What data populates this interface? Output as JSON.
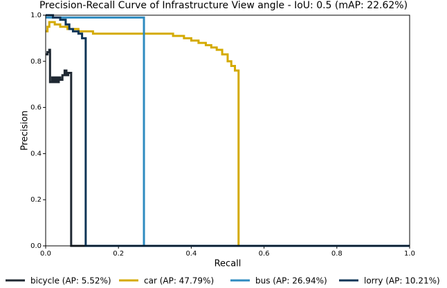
{
  "chart_data": {
    "type": "line",
    "title": "Precision-Recall Curve of Infrastructure View angle - IoU: 0.5 (mAP: 22.62%)",
    "x_label": "Recall",
    "y_label": "Precision",
    "xlim": [
      0,
      1
    ],
    "ylim": [
      0,
      1
    ],
    "xticks": [
      {
        "value": 0,
        "label": "0.0"
      },
      {
        "value": 0.2,
        "label": "0.2"
      },
      {
        "value": 0.4,
        "label": "0.4"
      },
      {
        "value": 0.6,
        "label": "0.6"
      },
      {
        "value": 0.8,
        "label": "0.8"
      },
      {
        "value": 1,
        "label": "1.0"
      }
    ],
    "yticks": [
      {
        "value": 0,
        "label": "0.0"
      },
      {
        "value": 0.2,
        "label": "0.2"
      },
      {
        "value": 0.4,
        "label": "0.4"
      },
      {
        "value": 0.6,
        "label": "0.6"
      },
      {
        "value": 0.8,
        "label": "0.8"
      },
      {
        "value": 1,
        "label": "1.0"
      }
    ],
    "legend": "bottom",
    "series": [
      {
        "name": "bicycle (AP: 5.52%)",
        "color": "#1f2832",
        "x": [
          0,
          0.005,
          0.005,
          0.01,
          0.01,
          0.012,
          0.012,
          0.018,
          0.018,
          0.022,
          0.022,
          0.027,
          0.027,
          0.031,
          0.031,
          0.036,
          0.036,
          0.04,
          0.04,
          0.046,
          0.046,
          0.052,
          0.052,
          0.057,
          0.057,
          0.062,
          0.062,
          0.07,
          0.07,
          1
        ],
        "values": [
          0.83,
          0.83,
          0.84,
          0.84,
          0.85,
          0.85,
          0.71,
          0.71,
          0.73,
          0.73,
          0.71,
          0.71,
          0.73,
          0.73,
          0.71,
          0.71,
          0.73,
          0.73,
          0.72,
          0.72,
          0.74,
          0.74,
          0.76,
          0.76,
          0.74,
          0.74,
          0.75,
          0.75,
          0,
          0
        ]
      },
      {
        "name": "car (AP: 47.79%)",
        "color": "#d4aa00",
        "x": [
          0,
          0.005,
          0.005,
          0.01,
          0.01,
          0.025,
          0.025,
          0.04,
          0.04,
          0.06,
          0.06,
          0.09,
          0.09,
          0.13,
          0.13,
          0.35,
          0.35,
          0.38,
          0.38,
          0.4,
          0.4,
          0.42,
          0.42,
          0.44,
          0.44,
          0.455,
          0.455,
          0.47,
          0.47,
          0.485,
          0.485,
          0.5,
          0.5,
          0.51,
          0.51,
          0.52,
          0.52,
          0.53,
          0.53,
          1
        ],
        "values": [
          0.93,
          0.93,
          0.95,
          0.95,
          0.97,
          0.97,
          0.96,
          0.96,
          0.95,
          0.95,
          0.94,
          0.94,
          0.93,
          0.93,
          0.92,
          0.92,
          0.91,
          0.91,
          0.9,
          0.9,
          0.89,
          0.89,
          0.88,
          0.88,
          0.87,
          0.87,
          0.86,
          0.86,
          0.85,
          0.85,
          0.83,
          0.83,
          0.8,
          0.8,
          0.78,
          0.78,
          0.76,
          0.76,
          0,
          0
        ]
      },
      {
        "name": "bus (AP: 26.94%)",
        "color": "#2e8bc0",
        "x": [
          0,
          0.27,
          0.27,
          1
        ],
        "values": [
          0.99,
          0.99,
          0,
          0
        ]
      },
      {
        "name": "lorry (AP: 10.21%)",
        "color": "#0f3557",
        "x": [
          0,
          0.02,
          0.02,
          0.04,
          0.04,
          0.055,
          0.055,
          0.065,
          0.065,
          0.075,
          0.075,
          0.09,
          0.09,
          0.1,
          0.1,
          0.11,
          0.11,
          1
        ],
        "values": [
          1,
          1,
          0.99,
          0.99,
          0.98,
          0.98,
          0.96,
          0.96,
          0.94,
          0.94,
          0.93,
          0.93,
          0.92,
          0.92,
          0.9,
          0.9,
          0,
          0
        ]
      }
    ]
  }
}
